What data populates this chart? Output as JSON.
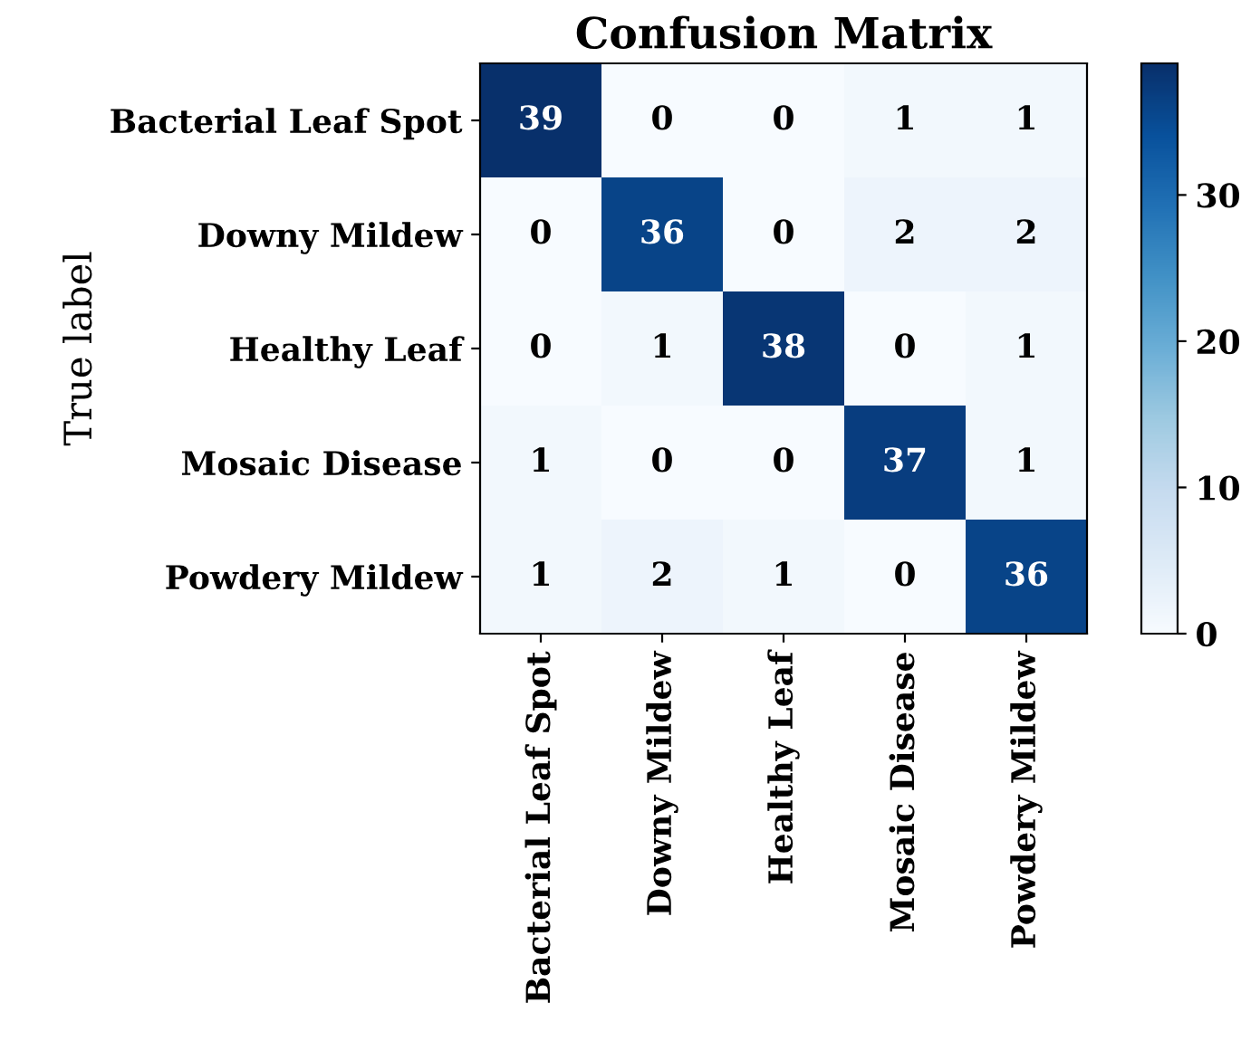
{
  "chart_data": {
    "type": "heatmap",
    "title": "Confusion Matrix",
    "ylabel": "True label",
    "categories": [
      "Bacterial Leaf Spot",
      "Downy Mildew",
      "Healthy Leaf",
      "Mosaic Disease",
      "Powdery Mildew"
    ],
    "y_categories": [
      "Bacterial Leaf Spot",
      "Downy Mildew",
      "Healthy Leaf",
      "Mosaic Disease",
      "Powdery Mildew"
    ],
    "cells": [
      [
        39,
        0,
        0,
        1,
        1
      ],
      [
        0,
        36,
        0,
        2,
        2
      ],
      [
        0,
        1,
        38,
        0,
        1
      ],
      [
        1,
        0,
        0,
        37,
        1
      ],
      [
        1,
        2,
        1,
        0,
        36
      ]
    ],
    "clim": [
      0,
      39
    ],
    "cticks": [
      0,
      10,
      20,
      30
    ],
    "data_labels": true
  }
}
